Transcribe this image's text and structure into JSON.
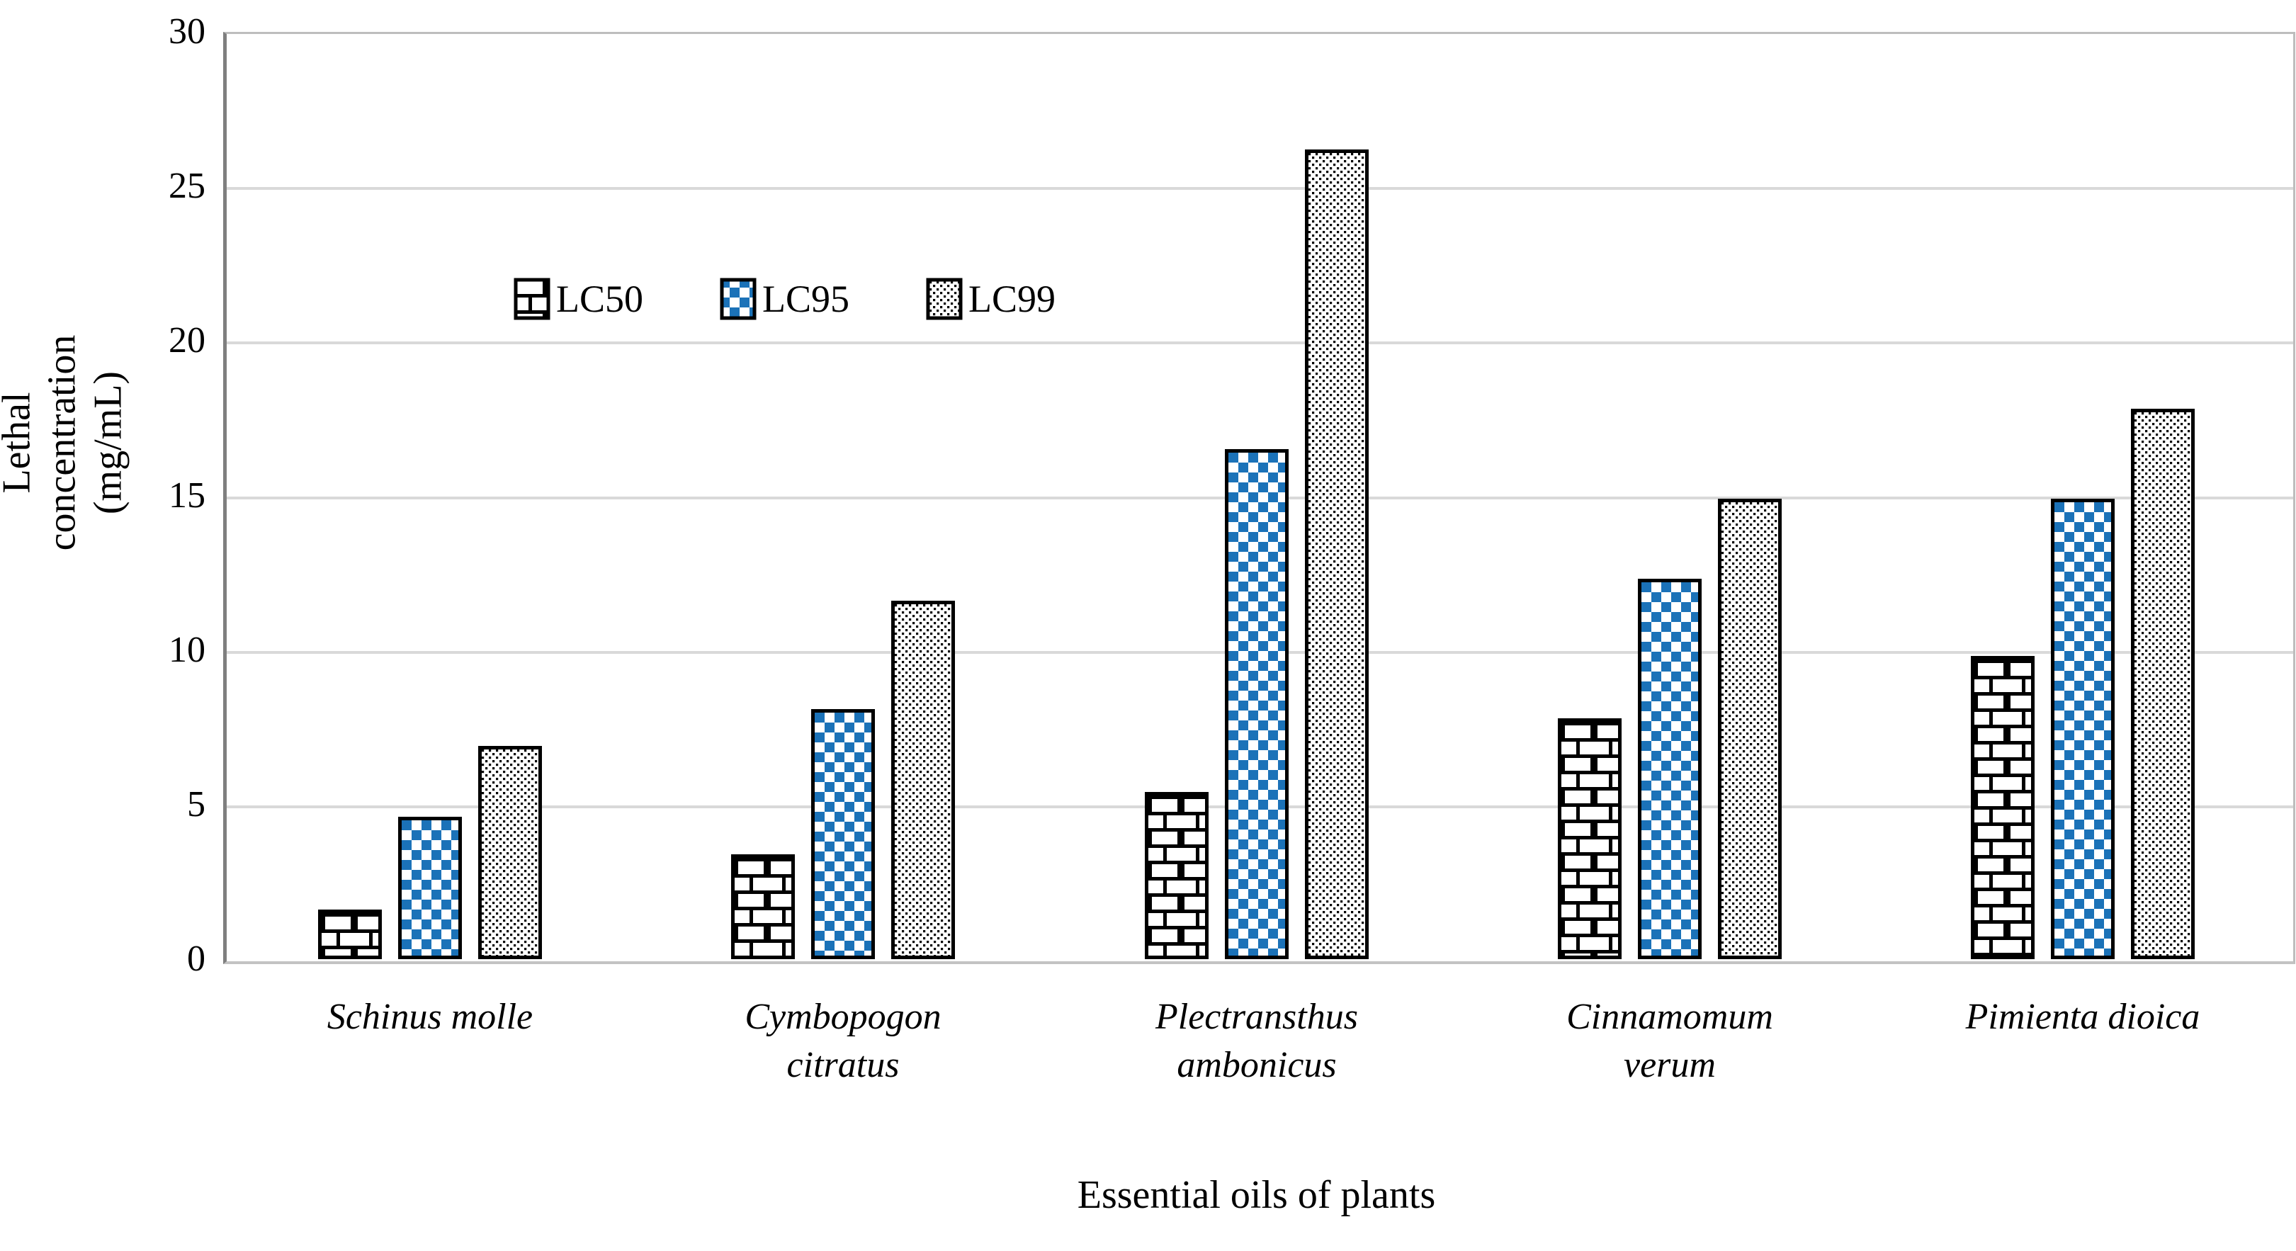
{
  "chart_data": {
    "type": "bar",
    "title": "",
    "xlabel": "Essential oils of plants",
    "ylabel": "Lethal concentration (mg/mL)",
    "ylabel_lines": "Lethal concentration\n(mg/mL)",
    "categories": [
      "Schinus molle",
      "Cymbopogon citratus",
      "Plectransthus ambonicus",
      "Cinnamomum verum",
      "Pimienta dioica"
    ],
    "category_label_lines": [
      "Schinus molle",
      "Cymbopogon\ncitratus",
      "Plectransthus\nambonicus",
      "Cinnamomum\nverum",
      "Pimienta dioica"
    ],
    "series": [
      {
        "name": "LC50",
        "pattern": "brick",
        "values": [
          1.6,
          3.4,
          5.4,
          7.8,
          9.8
        ]
      },
      {
        "name": "LC95",
        "pattern": "checker",
        "values": [
          4.6,
          8.1,
          16.5,
          12.3,
          14.9
        ]
      },
      {
        "name": "LC99",
        "pattern": "dots",
        "values": [
          6.9,
          11.6,
          26.2,
          14.9,
          17.8
        ]
      }
    ],
    "ylim": [
      0,
      30
    ],
    "yticks": [
      0,
      5,
      10,
      15,
      20,
      25,
      30
    ],
    "grid": true,
    "legend_position": "inside-upper-left"
  },
  "colors": {
    "checker_blue": "#1B72B8",
    "pattern_black": "#000000",
    "gridline": "#d9d9d9",
    "axis_line": "#7f7f7f",
    "plot_border": "#bdbdbd",
    "text": "#000000",
    "background": "#ffffff"
  }
}
